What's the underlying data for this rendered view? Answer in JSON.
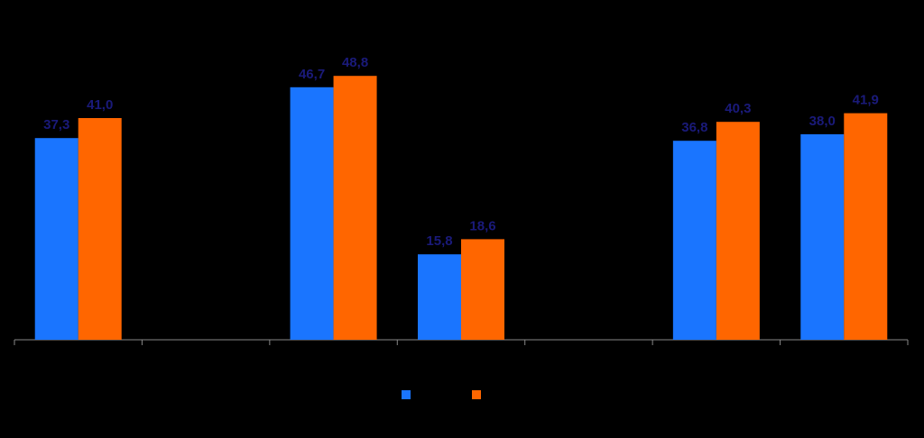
{
  "chart_data": {
    "type": "bar",
    "categories": [
      null,
      null,
      null,
      null,
      null,
      null,
      null
    ],
    "series": [
      {
        "color": "#1a75ff",
        "values": [
          37.3,
          null,
          46.7,
          15.8,
          null,
          36.8,
          38.0
        ],
        "value_labels": [
          "37,3",
          null,
          "46,7",
          "15,8",
          null,
          "36,8",
          "38,0"
        ]
      },
      {
        "color": "#ff6600",
        "values": [
          41.0,
          null,
          48.8,
          18.6,
          null,
          40.3,
          41.9
        ],
        "value_labels": [
          "41,0",
          null,
          "48,8",
          "18,6",
          null,
          "40,3",
          "41,9"
        ]
      }
    ],
    "ylim": [
      0,
      60
    ],
    "legend": "bottom"
  }
}
